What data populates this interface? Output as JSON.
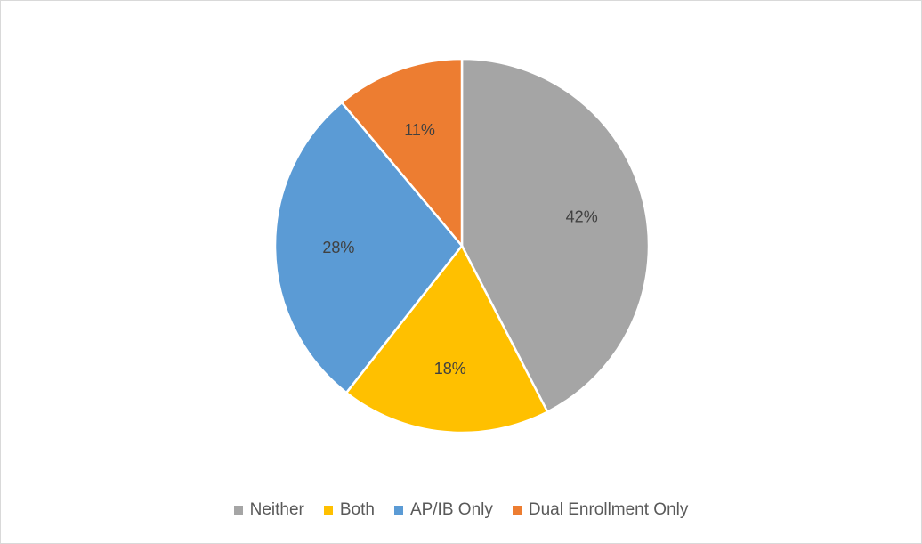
{
  "chart_data": {
    "type": "pie",
    "title": "",
    "start_angle_deg": 0,
    "direction": "clockwise",
    "legend_position": "bottom",
    "slices": [
      {
        "name": "Neither",
        "value": 42,
        "label": "42%",
        "color": "#a5a5a5"
      },
      {
        "name": "Both",
        "value": 18,
        "label": "18%",
        "color": "#ffc000"
      },
      {
        "name": "AP/IB Only",
        "value": 28,
        "label": "28%",
        "color": "#5b9bd5"
      },
      {
        "name": "Dual Enrollment Only",
        "value": 11,
        "label": "11%",
        "color": "#ed7d31"
      }
    ]
  }
}
